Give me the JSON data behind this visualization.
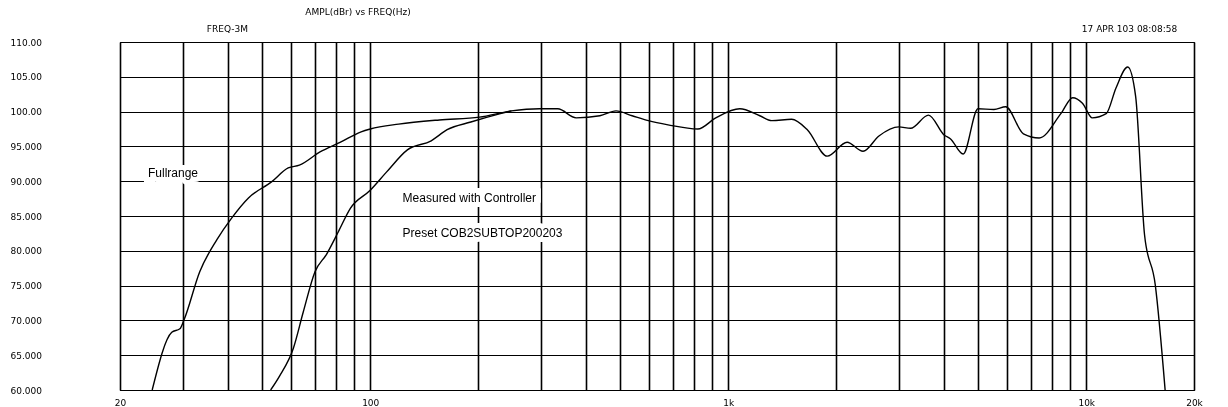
{
  "chart_data": {
    "type": "line",
    "title": "AMPL(dBr) vs FREQ(Hz)",
    "annotations": [
      "FREQ-3M",
      "17 APR 103 08:08:58",
      "Measured with Controller",
      "Preset COB2SUBTOP200203"
    ],
    "xlim": [
      20,
      20000
    ],
    "ylim": [
      60,
      110
    ],
    "xticks": [
      {
        "value": 20,
        "label": "20"
      },
      {
        "value": 30,
        "label": null
      },
      {
        "value": 40,
        "label": null
      },
      {
        "value": 50,
        "label": null
      },
      {
        "value": 60,
        "label": null
      },
      {
        "value": 70,
        "label": null
      },
      {
        "value": 80,
        "label": null
      },
      {
        "value": 90,
        "label": null
      },
      {
        "value": 100,
        "label": "100"
      },
      {
        "value": 200,
        "label": null
      },
      {
        "value": 300,
        "label": null
      },
      {
        "value": 400,
        "label": null
      },
      {
        "value": 500,
        "label": null
      },
      {
        "value": 600,
        "label": null
      },
      {
        "value": 700,
        "label": null
      },
      {
        "value": 800,
        "label": null
      },
      {
        "value": 900,
        "label": null
      },
      {
        "value": 1000,
        "label": "1k"
      },
      {
        "value": 2000,
        "label": null
      },
      {
        "value": 3000,
        "label": null
      },
      {
        "value": 4000,
        "label": null
      },
      {
        "value": 5000,
        "label": null
      },
      {
        "value": 6000,
        "label": null
      },
      {
        "value": 7000,
        "label": null
      },
      {
        "value": 8000,
        "label": null
      },
      {
        "value": 9000,
        "label": null
      },
      {
        "value": 10000,
        "label": "10k"
      },
      {
        "value": 20000,
        "label": "20k"
      }
    ],
    "yticks": [
      {
        "value": 60,
        "label": "60.000"
      },
      {
        "value": 65,
        "label": "65.000"
      },
      {
        "value": 70,
        "label": "70.000"
      },
      {
        "value": 75,
        "label": "75.000"
      },
      {
        "value": 80,
        "label": "80.000"
      },
      {
        "value": 85,
        "label": "85.000"
      },
      {
        "value": 90,
        "label": "90.000"
      },
      {
        "value": 95,
        "label": "95.000"
      },
      {
        "value": 100,
        "label": "100.00"
      },
      {
        "value": 105,
        "label": "105.00"
      },
      {
        "value": 110,
        "label": "110.00"
      }
    ],
    "log": "x",
    "grid": true,
    "marker": "none",
    "line_style": "solid",
    "series": [
      {
        "name": "Fullrange",
        "color": "#000000",
        "x": [
          24.6,
          27.9,
          29.4,
          30.2,
          33.4,
          37.3,
          41,
          45.7,
          53,
          59,
          63.4,
          72.4,
          82.6,
          94.3,
          100,
          120,
          156,
          202,
          248,
          297,
          334,
          376,
          438,
          486,
          539,
          598,
          679,
          822,
          923,
          1077,
          1225,
          1323,
          1503,
          1663,
          1890,
          2147,
          2380,
          2636,
          2996,
          3232,
          3626,
          4016,
          4172,
          4531,
          4985,
          5522,
          5958,
          6676,
          7387,
          8494,
          9164,
          9760,
          10399,
          11370,
          12110,
          13060,
          13740,
          14550,
          15590,
          16610
        ],
        "values": [
          60,
          68.3,
          68.8,
          70.1,
          77,
          81.6,
          84.7,
          87.6,
          89.9,
          91.9,
          92.3,
          94.2,
          95.6,
          97.1,
          97.5,
          98.2,
          98.8,
          99.2,
          100.1,
          100.4,
          100.4,
          99.1,
          99.4,
          100.1,
          99.4,
          98.7,
          98.1,
          97.5,
          99.1,
          100.4,
          99.4,
          98.7,
          98.9,
          97.4,
          93.6,
          95.6,
          94.3,
          96.5,
          97.8,
          97.6,
          99.5,
          96.6,
          96.1,
          93.9,
          100.4,
          100.3,
          100.7,
          96.8,
          96.2,
          99.7,
          102,
          101.2,
          99.1,
          99.7,
          103.4,
          106.4,
          102.2,
          82.3,
          75.1,
          60
        ]
      },
      {
        "color": "#000000",
        "x": [
          52.7,
          55.8,
          61,
          65,
          70.1,
          75.5,
          81.4,
          88,
          100,
          111,
          127,
          148,
          164,
          191,
          231,
          248
        ],
        "values": [
          60,
          62,
          66,
          71.2,
          77,
          79.5,
          82.7,
          86.1,
          88.7,
          91.3,
          94.5,
          95.8,
          97.4,
          98.5,
          99.7,
          100.1
        ]
      }
    ]
  }
}
